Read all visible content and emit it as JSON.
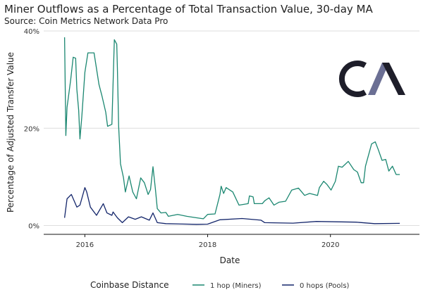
{
  "chart_data": {
    "type": "line",
    "title": "Miner Outflows as a Percentage of Total Transaction Value, 30-day MA",
    "subtitle": "Source: Coin Metrics Network Data Pro",
    "xlabel": "Date",
    "ylabel": "Percentage of Adjusted Transfer Value",
    "xlim": [
      2015.33,
      2021.45
    ],
    "ylim": [
      -1.8,
      40
    ],
    "x_ticks": [
      {
        "value": 2016,
        "label": "2016"
      },
      {
        "value": 2018,
        "label": "2018"
      },
      {
        "value": 2020,
        "label": "2020"
      }
    ],
    "y_ticks": [
      {
        "value": 0,
        "label": "0%"
      },
      {
        "value": 20,
        "label": "20%"
      },
      {
        "value": 40,
        "label": "40%"
      }
    ],
    "grid": true,
    "legend": {
      "title": "Coinbase Distance",
      "placement": "bottom"
    },
    "logo_text": "CM",
    "series": [
      {
        "name": "1 hop (Miners)",
        "color": "#1b8771",
        "points": [
          [
            2015.67,
            38.7
          ],
          [
            2015.69,
            18.5
          ],
          [
            2015.71,
            24.3
          ],
          [
            2015.77,
            30
          ],
          [
            2015.81,
            34.6
          ],
          [
            2015.85,
            34.4
          ],
          [
            2015.87,
            28
          ],
          [
            2015.9,
            23.7
          ],
          [
            2015.92,
            17.8
          ],
          [
            2015.95,
            22.3
          ],
          [
            2016.0,
            31.5
          ],
          [
            2016.05,
            35.5
          ],
          [
            2016.15,
            35.5
          ],
          [
            2016.23,
            29
          ],
          [
            2016.28,
            26.6
          ],
          [
            2016.34,
            23.3
          ],
          [
            2016.37,
            20.4
          ],
          [
            2016.44,
            20.8
          ],
          [
            2016.48,
            38.2
          ],
          [
            2016.52,
            37.3
          ],
          [
            2016.53,
            32.4
          ],
          [
            2016.55,
            20.4
          ],
          [
            2016.58,
            12.7
          ],
          [
            2016.63,
            9.8
          ],
          [
            2016.66,
            6.9
          ],
          [
            2016.72,
            10.2
          ],
          [
            2016.78,
            6.9
          ],
          [
            2016.84,
            5.5
          ],
          [
            2016.91,
            9.8
          ],
          [
            2016.97,
            8.8
          ],
          [
            2017.03,
            6.4
          ],
          [
            2017.07,
            7.4
          ],
          [
            2017.11,
            12.1
          ],
          [
            2017.15,
            7.4
          ],
          [
            2017.18,
            3.5
          ],
          [
            2017.24,
            2.6
          ],
          [
            2017.32,
            2.7
          ],
          [
            2017.36,
            1.9
          ],
          [
            2017.51,
            2.3
          ],
          [
            2017.66,
            1.9
          ],
          [
            2017.82,
            1.6
          ],
          [
            2017.93,
            1.4
          ],
          [
            2018.0,
            2.3
          ],
          [
            2018.12,
            2.4
          ],
          [
            2018.2,
            6.4
          ],
          [
            2018.22,
            8.1
          ],
          [
            2018.26,
            6.6
          ],
          [
            2018.3,
            7.8
          ],
          [
            2018.41,
            6.9
          ],
          [
            2018.51,
            4.2
          ],
          [
            2018.66,
            4.5
          ],
          [
            2018.68,
            6.1
          ],
          [
            2018.74,
            5.9
          ],
          [
            2018.76,
            4.5
          ],
          [
            2018.89,
            4.5
          ],
          [
            2018.93,
            5.1
          ],
          [
            2019.0,
            5.7
          ],
          [
            2019.08,
            4.2
          ],
          [
            2019.16,
            4.8
          ],
          [
            2019.27,
            5.0
          ],
          [
            2019.37,
            7.3
          ],
          [
            2019.48,
            7.7
          ],
          [
            2019.58,
            6.2
          ],
          [
            2019.66,
            6.6
          ],
          [
            2019.79,
            6.2
          ],
          [
            2019.82,
            7.8
          ],
          [
            2019.89,
            9.1
          ],
          [
            2019.94,
            8.5
          ],
          [
            2020.01,
            7.3
          ],
          [
            2020.08,
            9.1
          ],
          [
            2020.13,
            12.2
          ],
          [
            2020.19,
            12.0
          ],
          [
            2020.29,
            13.2
          ],
          [
            2020.38,
            11.5
          ],
          [
            2020.44,
            11.0
          ],
          [
            2020.5,
            8.8
          ],
          [
            2020.54,
            8.8
          ],
          [
            2020.57,
            12.2
          ],
          [
            2020.67,
            16.8
          ],
          [
            2020.73,
            17.2
          ],
          [
            2020.78,
            15.6
          ],
          [
            2020.84,
            13.4
          ],
          [
            2020.9,
            13.6
          ],
          [
            2020.95,
            11.2
          ],
          [
            2021.01,
            12.2
          ],
          [
            2021.07,
            10.5
          ],
          [
            2021.13,
            10.5
          ]
        ]
      },
      {
        "name": "0 hops (Pools)",
        "color": "#14266b",
        "points": [
          [
            2015.67,
            1.6
          ],
          [
            2015.71,
            5.5
          ],
          [
            2015.78,
            6.4
          ],
          [
            2015.87,
            3.8
          ],
          [
            2015.92,
            4.2
          ],
          [
            2016.0,
            7.8
          ],
          [
            2016.03,
            6.9
          ],
          [
            2016.09,
            3.8
          ],
          [
            2016.19,
            2.1
          ],
          [
            2016.3,
            4.5
          ],
          [
            2016.36,
            2.6
          ],
          [
            2016.44,
            2.1
          ],
          [
            2016.46,
            2.8
          ],
          [
            2016.53,
            1.6
          ],
          [
            2016.61,
            0.6
          ],
          [
            2016.71,
            1.8
          ],
          [
            2016.82,
            1.3
          ],
          [
            2016.92,
            1.8
          ],
          [
            2017.05,
            1.1
          ],
          [
            2017.11,
            2.6
          ],
          [
            2017.18,
            0.6
          ],
          [
            2017.32,
            0.4
          ],
          [
            2017.82,
            0.25
          ],
          [
            2018.0,
            0.3
          ],
          [
            2018.2,
            1.2
          ],
          [
            2018.56,
            1.45
          ],
          [
            2018.87,
            1.1
          ],
          [
            2018.93,
            0.6
          ],
          [
            2019.39,
            0.5
          ],
          [
            2019.77,
            0.85
          ],
          [
            2020.42,
            0.7
          ],
          [
            2020.72,
            0.4
          ],
          [
            2021.13,
            0.45
          ]
        ]
      }
    ]
  }
}
